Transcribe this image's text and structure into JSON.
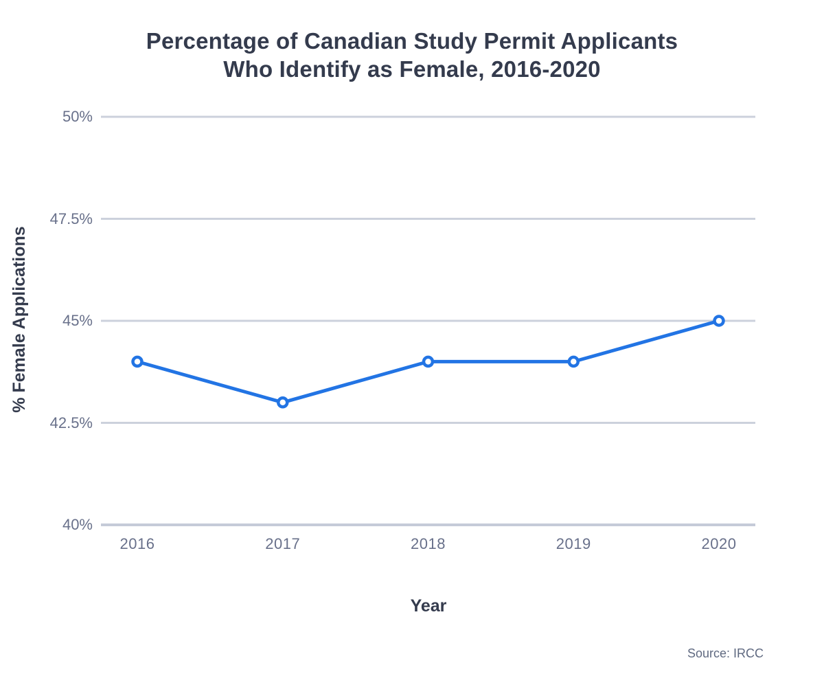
{
  "chart_data": {
    "type": "line",
    "title": "Percentage of Canadian Study Permit Applicants Who Identify as Female, 2016-2020",
    "title_lines": [
      "Percentage of Canadian Study Permit Applicants",
      "Who Identify as Female, 2016-2020"
    ],
    "xlabel": "Year",
    "ylabel": "% Female Applications",
    "source": "Source: IRCC",
    "categories": [
      "2016",
      "2017",
      "2018",
      "2019",
      "2020"
    ],
    "series": [
      {
        "name": "% Female Applications",
        "values": [
          44,
          43,
          44,
          44,
          45
        ]
      }
    ],
    "ylim": [
      40,
      50
    ],
    "yticks": [
      40,
      42.5,
      45,
      47.5,
      50
    ],
    "ytick_labels": [
      "40%",
      "42.5%",
      "45%",
      "47.5%",
      "50%"
    ],
    "grid": "horizontal",
    "legend": "none",
    "colors": {
      "line": "#2274e4",
      "marker_fill": "#ffffff",
      "grid": "#ccd1dc",
      "grid_bottom": "#c5cbd8",
      "title_text": "#343b4d",
      "tick_text": "#68708a",
      "source_text": "#5f6980",
      "background": "#ffffff"
    }
  }
}
